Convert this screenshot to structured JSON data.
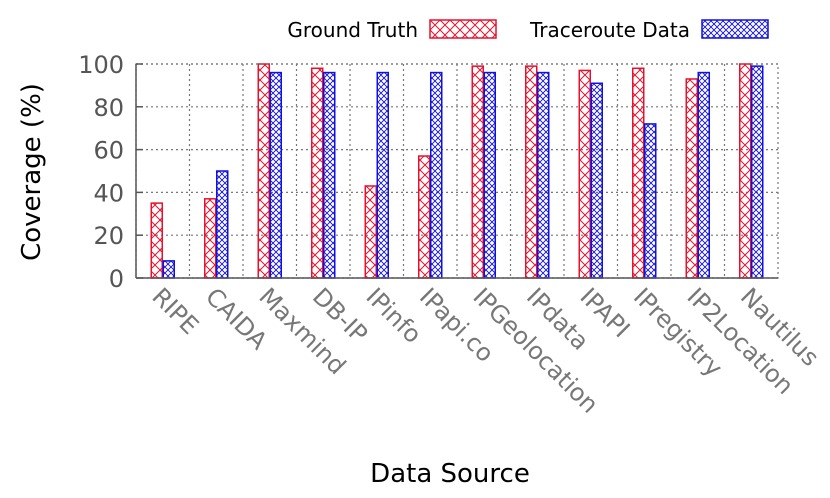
{
  "chart_data": {
    "type": "bar",
    "title": "",
    "xlabel": "Data Source",
    "ylabel": "Coverage (%)",
    "ylim": [
      0,
      100
    ],
    "yticks": [
      0,
      20,
      40,
      60,
      80,
      100
    ],
    "grid": true,
    "legend_position": "top",
    "categories": [
      "RIPE",
      "CAIDA",
      "Maxmind",
      "DB-IP",
      "IPinfo",
      "IPapi.co",
      "IPGeolocation",
      "IPdata",
      "IPAPI",
      "IPregistry",
      "IP2Location",
      "Nautilus"
    ],
    "series": [
      {
        "name": "Ground Truth",
        "color": "#e8112d",
        "pattern": "crosshatch-wide",
        "values": [
          35,
          37,
          100,
          98,
          43,
          57,
          99,
          99,
          97,
          98,
          93,
          100
        ]
      },
      {
        "name": "Traceroute Data",
        "color": "#1010e0",
        "pattern": "crosshatch-dense",
        "values": [
          8,
          50,
          96,
          96,
          96,
          96,
          96,
          96,
          91,
          72,
          96,
          99
        ]
      }
    ]
  }
}
